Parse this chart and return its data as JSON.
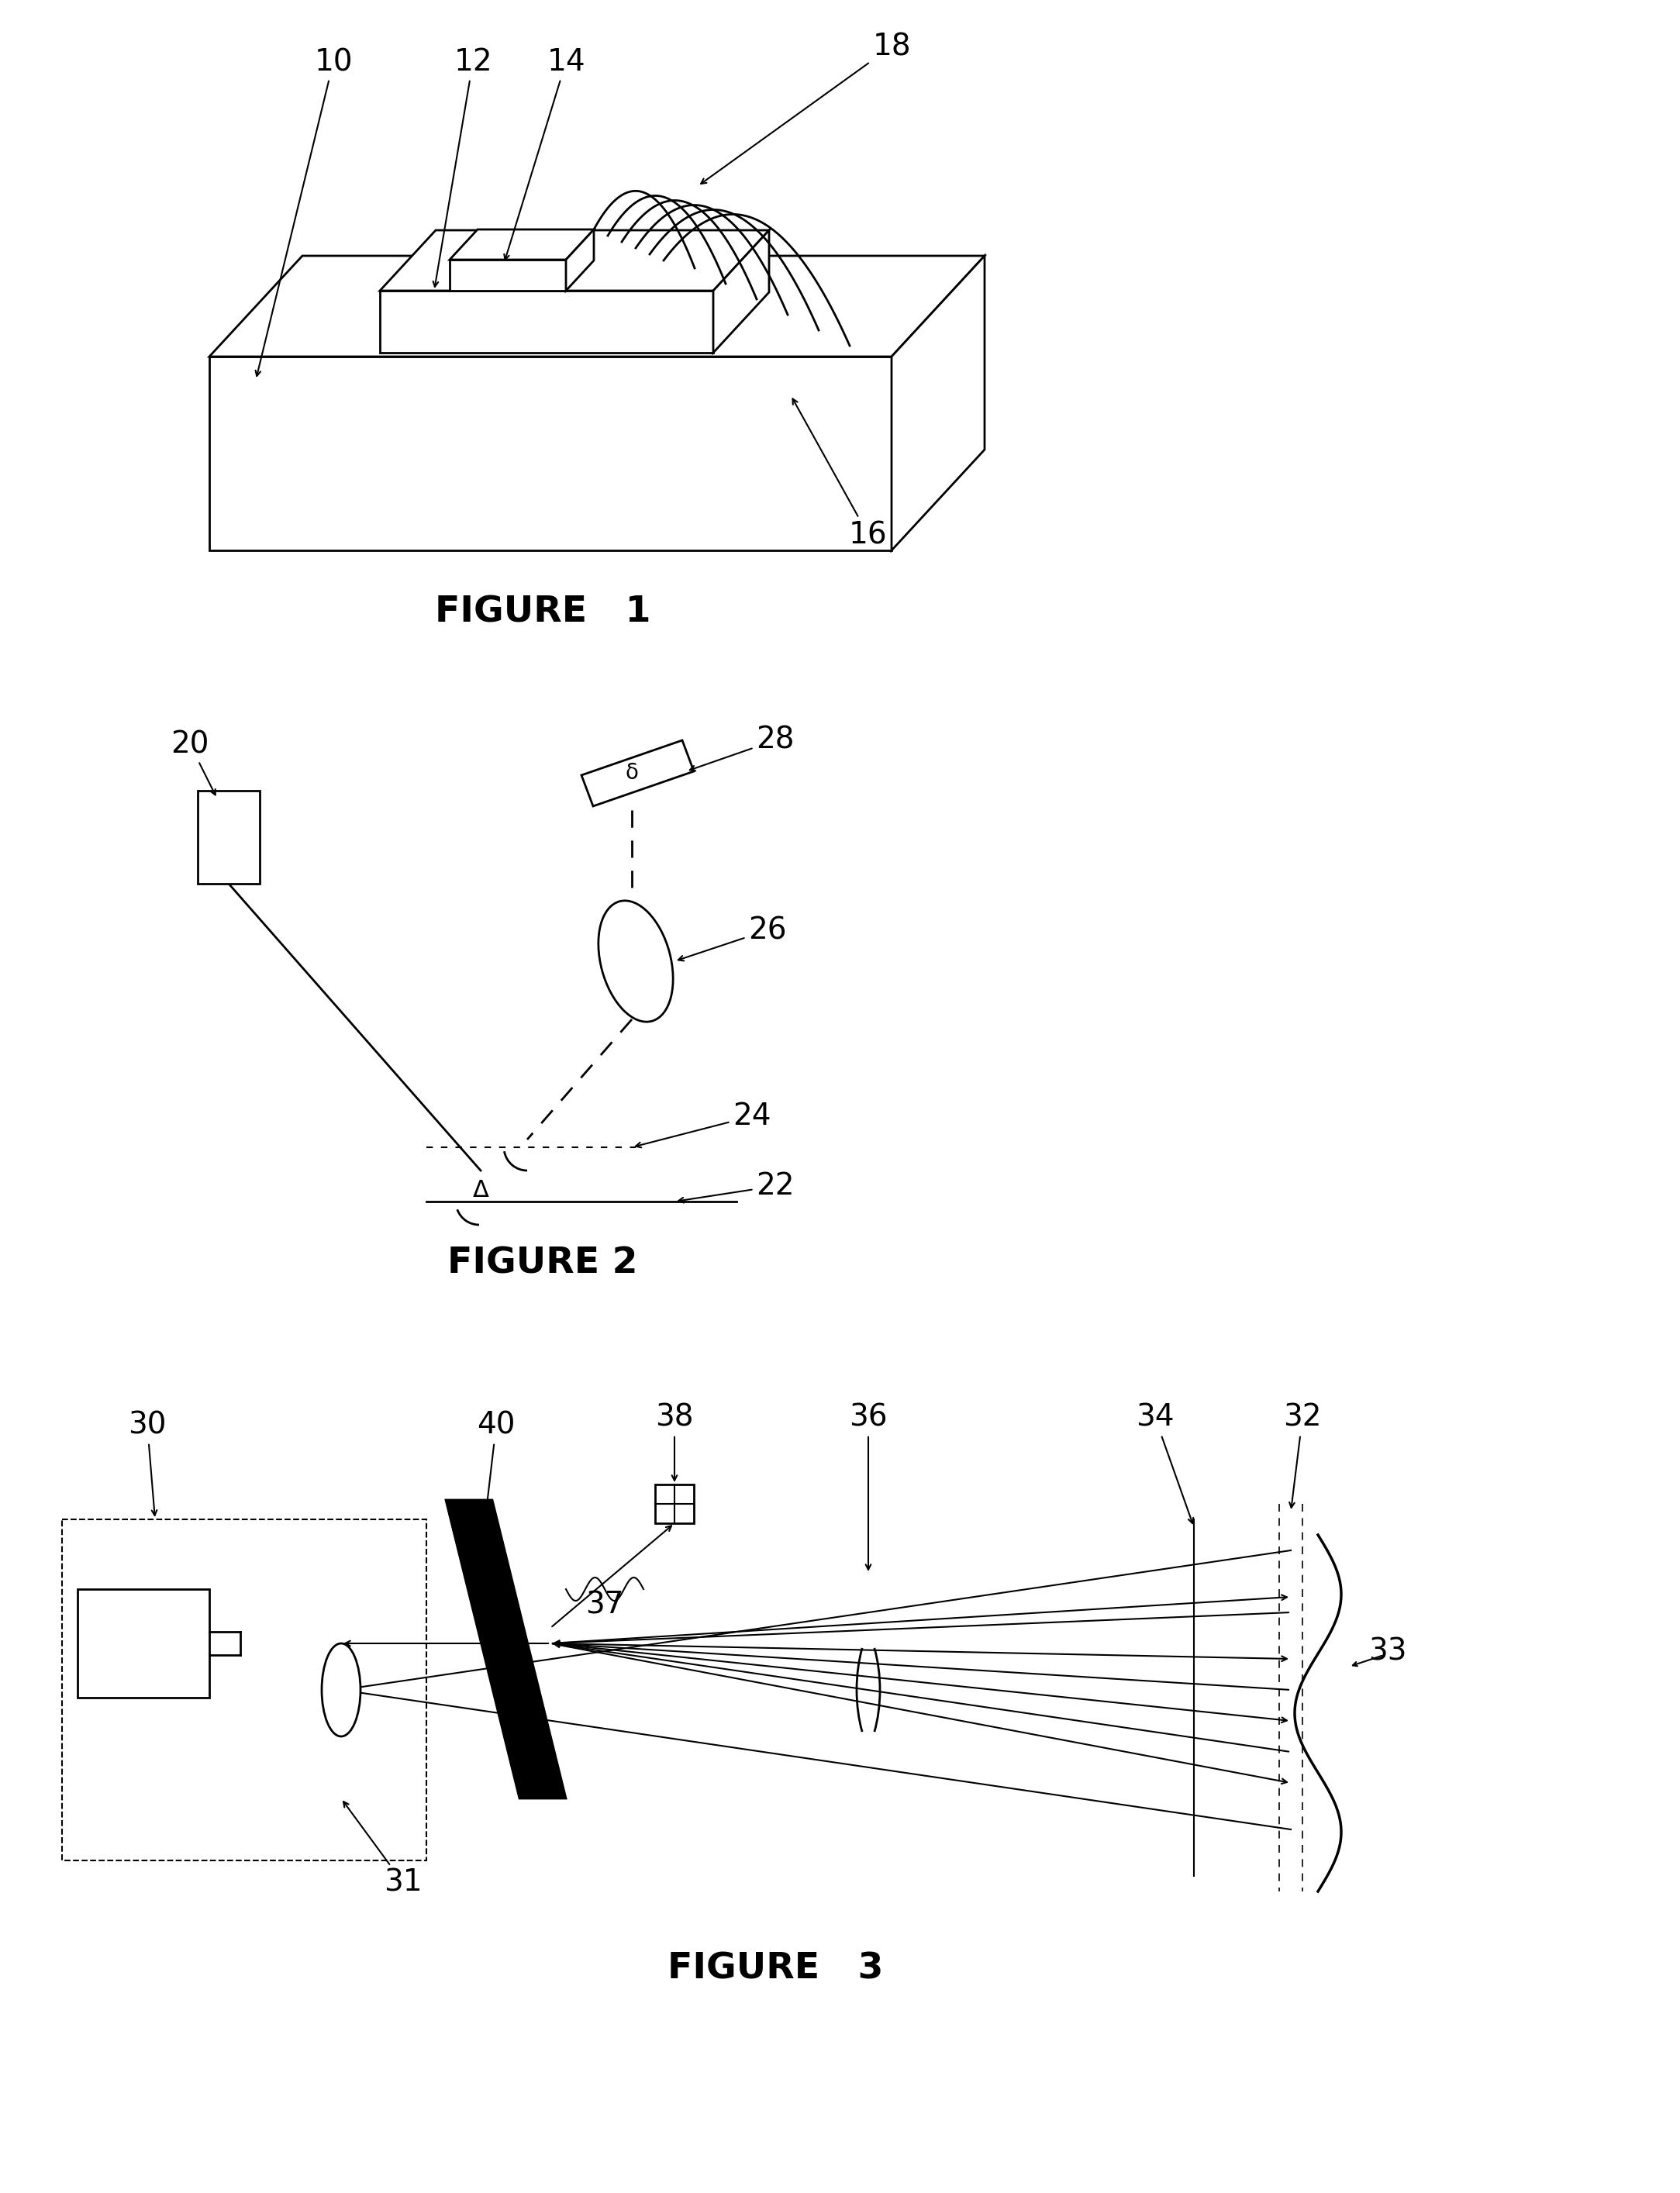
{
  "background_color": "#ffffff",
  "fig1_title": "FIGURE   1",
  "fig2_title": "FIGURE 2",
  "fig3_title": "FIGURE   3",
  "page_width": 21.67,
  "page_height": 28.29
}
